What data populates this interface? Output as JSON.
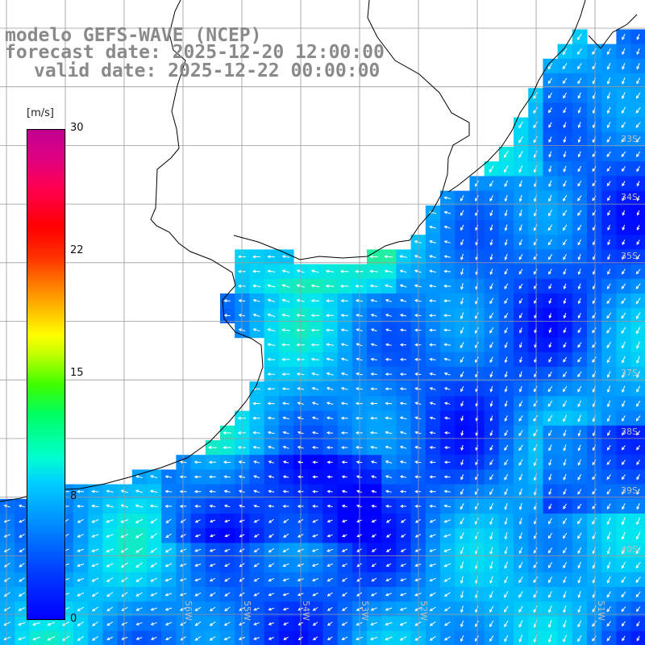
{
  "title": {
    "line1": "modelo GEFS-WAVE (NCEP)",
    "line2": "forecast date: 2025-12-20 12:00:00",
    "line3": "valid date: 2025-12-22 00:00:00"
  },
  "colorbar": {
    "unit": "[m/s]",
    "ticks": [
      "30",
      "22",
      "15",
      "8",
      "0"
    ],
    "range": [
      0,
      30
    ]
  },
  "grid_labels": {
    "latitudes": [
      "33S",
      "34S",
      "35S",
      "37S",
      "38S",
      "39S",
      "40S"
    ],
    "longitudes": [
      "56W",
      "55W",
      "54W",
      "53W",
      "52W",
      "51W"
    ]
  },
  "colors": {
    "land": "#ffffff",
    "coast": "#000000",
    "grid": "#9a9a9a",
    "arrows": "#ffffff",
    "title": "#8a8a8a"
  }
}
